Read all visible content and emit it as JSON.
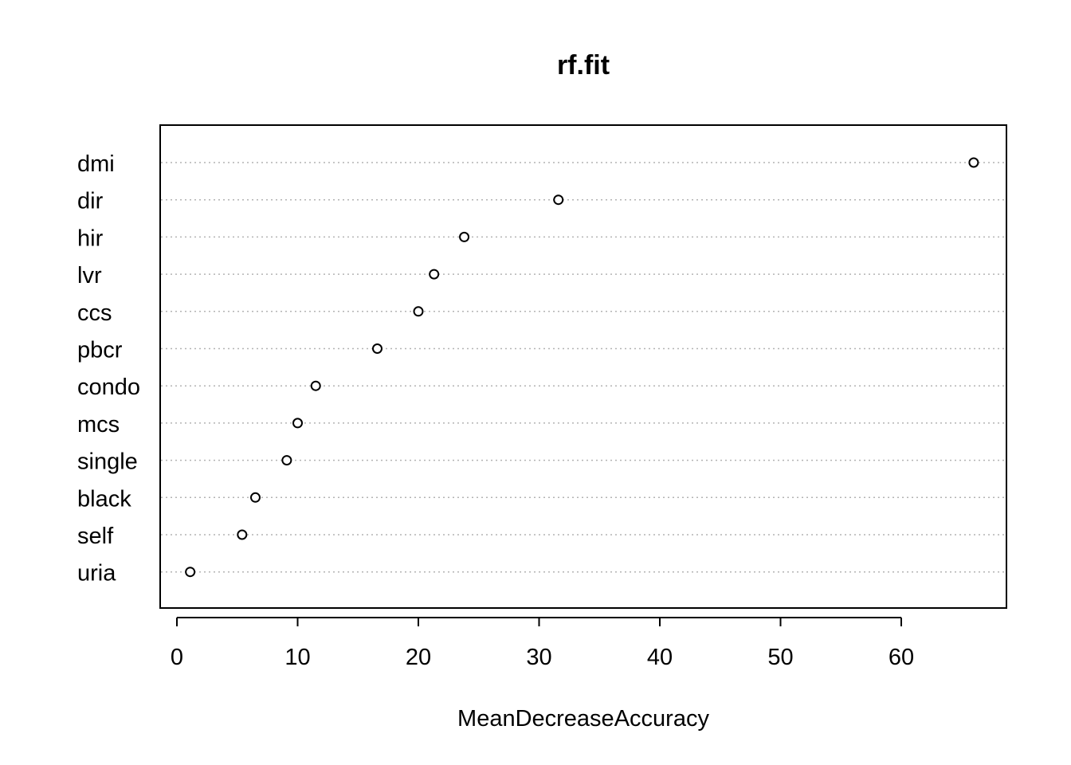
{
  "chart_data": {
    "type": "scatter",
    "title": "rf.fit",
    "xlabel": "MeanDecreaseAccuracy",
    "ylabel": "",
    "xlim": [
      0,
      68
    ],
    "xticks": [
      0,
      10,
      20,
      30,
      40,
      50,
      60
    ],
    "grid": "dotted horizontal guide lines",
    "categories": [
      "dmi",
      "dir",
      "hir",
      "lvr",
      "ccs",
      "pbcr",
      "condo",
      "mcs",
      "single",
      "black",
      "self",
      "uria"
    ],
    "values": [
      66.0,
      31.6,
      23.8,
      21.3,
      20.0,
      16.6,
      11.5,
      10.0,
      9.1,
      6.5,
      5.4,
      1.1
    ]
  }
}
